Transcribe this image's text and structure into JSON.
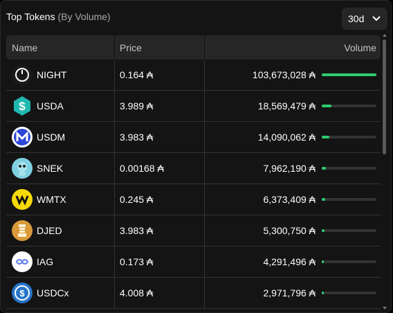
{
  "header": {
    "title": "Top Tokens",
    "subtitle": "(By Volume)"
  },
  "period": {
    "selected": "30d"
  },
  "table": {
    "columns": {
      "name": "Name",
      "price": "Price",
      "volume": "Volume"
    },
    "rows": [
      {
        "name": "NIGHT",
        "price": "0.164 ₳",
        "volume": "103,673,028 ₳",
        "share": 1.0,
        "icon": "night-icon",
        "color": "#ffffff"
      },
      {
        "name": "USDA",
        "price": "3.989 ₳",
        "volume": "18,569,479 ₳",
        "share": 0.179,
        "icon": "usda-icon",
        "color": "#1fb8b0"
      },
      {
        "name": "USDM",
        "price": "3.983 ₳",
        "volume": "14,090,062 ₳",
        "share": 0.136,
        "icon": "usdm-icon",
        "color": "#2c46d6"
      },
      {
        "name": "SNEK",
        "price": "0.00168 ₳",
        "volume": "7,962,190 ₳",
        "share": 0.077,
        "icon": "snek-icon",
        "color": "#7fd0e0"
      },
      {
        "name": "WMTX",
        "price": "0.245 ₳",
        "volume": "6,373,409 ₳",
        "share": 0.061,
        "icon": "wmtx-icon",
        "color": "#f5d90a"
      },
      {
        "name": "DJED",
        "price": "3.983 ₳",
        "volume": "5,300,750 ₳",
        "share": 0.051,
        "icon": "djed-icon",
        "color": "#d99a3a"
      },
      {
        "name": "IAG",
        "price": "0.173 ₳",
        "volume": "4,291,496 ₳",
        "share": 0.041,
        "icon": "iag-icon",
        "color": "#ffffff"
      },
      {
        "name": "USDCx",
        "price": "4.008 ₳",
        "volume": "2,971,796 ₳",
        "share": 0.029,
        "icon": "usdcx-icon",
        "color": "#2775ca"
      }
    ]
  }
}
